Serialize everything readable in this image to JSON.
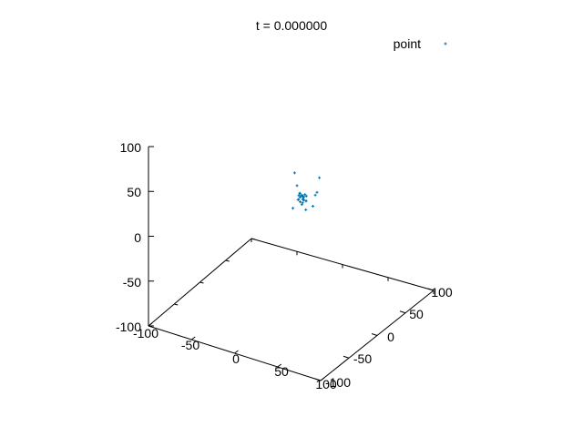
{
  "chart_data": {
    "type": "scatter",
    "title": "t = 0.000000",
    "legend": {
      "label": "point",
      "placement": "top-right",
      "color": "#0072b2"
    },
    "axes": {
      "x": {
        "range": [
          -100,
          100
        ],
        "ticks": [
          "-100",
          "-50",
          "0",
          "50",
          "100"
        ]
      },
      "y": {
        "range": [
          -100,
          100
        ],
        "ticks": [
          "100",
          "50",
          "0",
          "-50",
          "-100"
        ]
      },
      "z": {
        "range": [
          -100,
          100
        ],
        "ticks": [
          "100",
          "50",
          "0",
          "-50",
          "-100"
        ]
      }
    },
    "grid": false,
    "series": [
      {
        "name": "point",
        "color": "#0072b2",
        "marker": "dot",
        "points": [
          [
            8,
            10,
            20
          ],
          [
            12,
            14,
            22
          ],
          [
            15,
            8,
            24
          ],
          [
            10,
            16,
            18
          ],
          [
            9,
            12,
            26
          ],
          [
            14,
            11,
            21
          ],
          [
            11,
            9,
            19
          ],
          [
            13,
            15,
            25
          ],
          [
            7,
            13,
            23
          ],
          [
            16,
            12,
            20
          ],
          [
            10,
            10,
            28
          ],
          [
            12,
            12,
            17
          ],
          [
            9,
            16,
            22
          ],
          [
            15,
            14,
            19
          ],
          [
            13,
            9,
            27
          ],
          [
            8,
            14,
            21
          ],
          [
            11,
            13,
            24
          ],
          [
            14,
            16,
            23
          ],
          [
            10,
            8,
            22
          ],
          [
            12,
            11,
            25
          ],
          [
            20,
            5,
            15
          ],
          [
            2,
            18,
            30
          ],
          [
            25,
            15,
            28
          ],
          [
            18,
            22,
            10
          ],
          [
            5,
            5,
            12
          ],
          [
            30,
            10,
            35
          ],
          [
            -2,
            20,
            42
          ],
          [
            22,
            28,
            40
          ],
          [
            6,
            24,
            16
          ],
          [
            16,
            4,
            20
          ]
        ]
      }
    ]
  }
}
